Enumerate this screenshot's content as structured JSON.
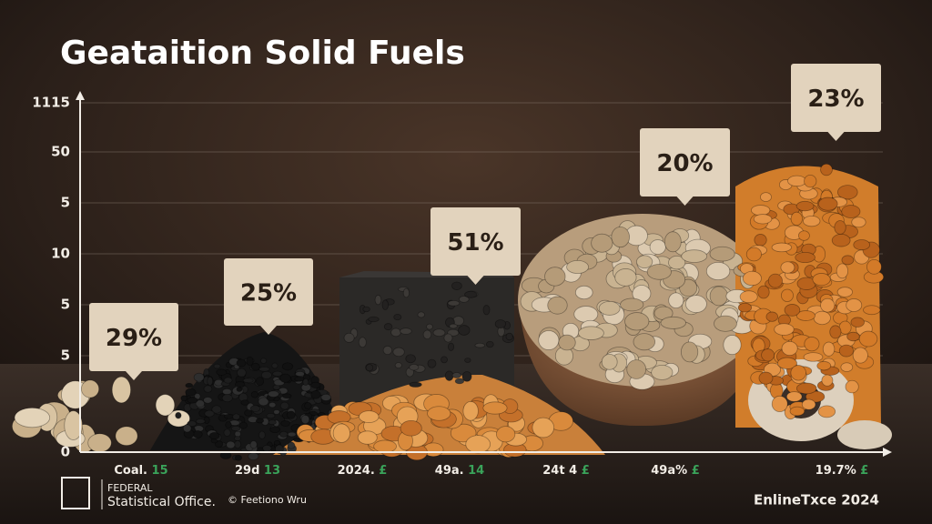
{
  "title": "Geataition Solid Fuels",
  "y_axis_labels": [
    "1115",
    "50",
    "5",
    "10",
    "5",
    "5",
    "0"
  ],
  "callouts": [
    "29%",
    "25%",
    "51%",
    "20%",
    "23%"
  ],
  "x_labels": [
    {
      "main": "Coal.",
      "mark": "15"
    },
    {
      "main": "29d",
      "mark": "13"
    },
    {
      "main": "2024.",
      "mark": "£"
    },
    {
      "main": "49a.",
      "mark": "14"
    },
    {
      "main": "24t 4",
      "mark": "£"
    },
    {
      "main": "49a%",
      "mark": "£"
    },
    {
      "main": "19.7%",
      "mark": "£"
    }
  ],
  "footer": {
    "org_line1": "FEDERAL",
    "org_line2": "Statistical Office.",
    "credit": "© Feetiono Wru",
    "edition": "EnlineTxce 2024"
  }
}
